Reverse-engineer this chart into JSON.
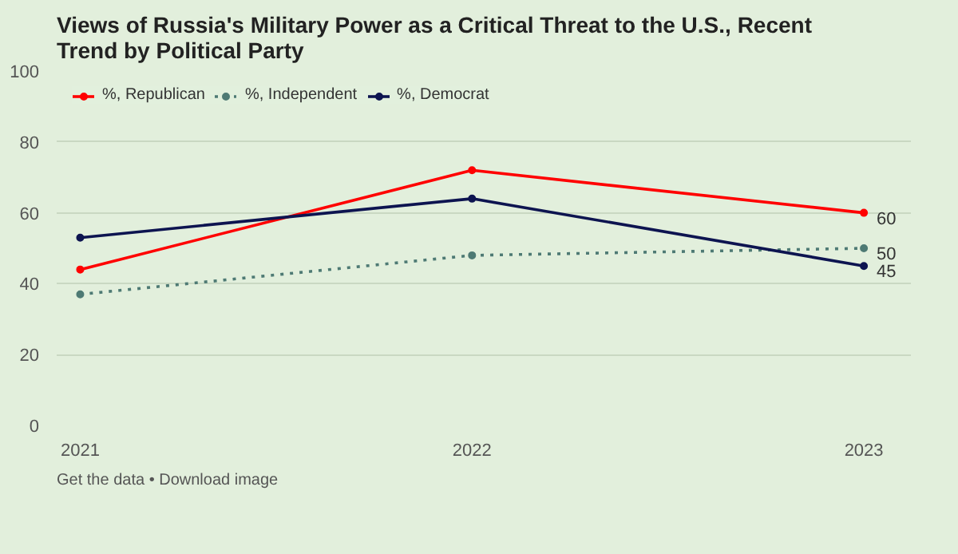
{
  "chart_data": {
    "type": "line",
    "title": "Views of Russia's Military Power as a Critical Threat to the U.S., Recent Trend by Political Party",
    "categories": [
      "2021",
      "2022",
      "2023"
    ],
    "series": [
      {
        "name": "%, Republican",
        "color": "#ff0000",
        "values": [
          44,
          72,
          60
        ],
        "line_style": "solid",
        "value_labels": [
          null,
          null,
          "60"
        ]
      },
      {
        "name": "%, Independent",
        "color": "#4e7a74",
        "values": [
          37,
          48,
          50
        ],
        "line_style": "dotted",
        "value_labels": [
          null,
          null,
          "50"
        ]
      },
      {
        "name": "%, Democrat",
        "color": "#0d1450",
        "values": [
          53,
          64,
          45
        ],
        "line_style": "solid",
        "value_labels": [
          null,
          null,
          "45"
        ]
      }
    ],
    "ylim": [
      0,
      100
    ],
    "yticks": [
      0,
      20,
      40,
      60,
      80,
      100
    ],
    "grid": "y",
    "legend": "top left",
    "marker": "circle",
    "annotations": [
      "Get the data • Download image"
    ]
  }
}
